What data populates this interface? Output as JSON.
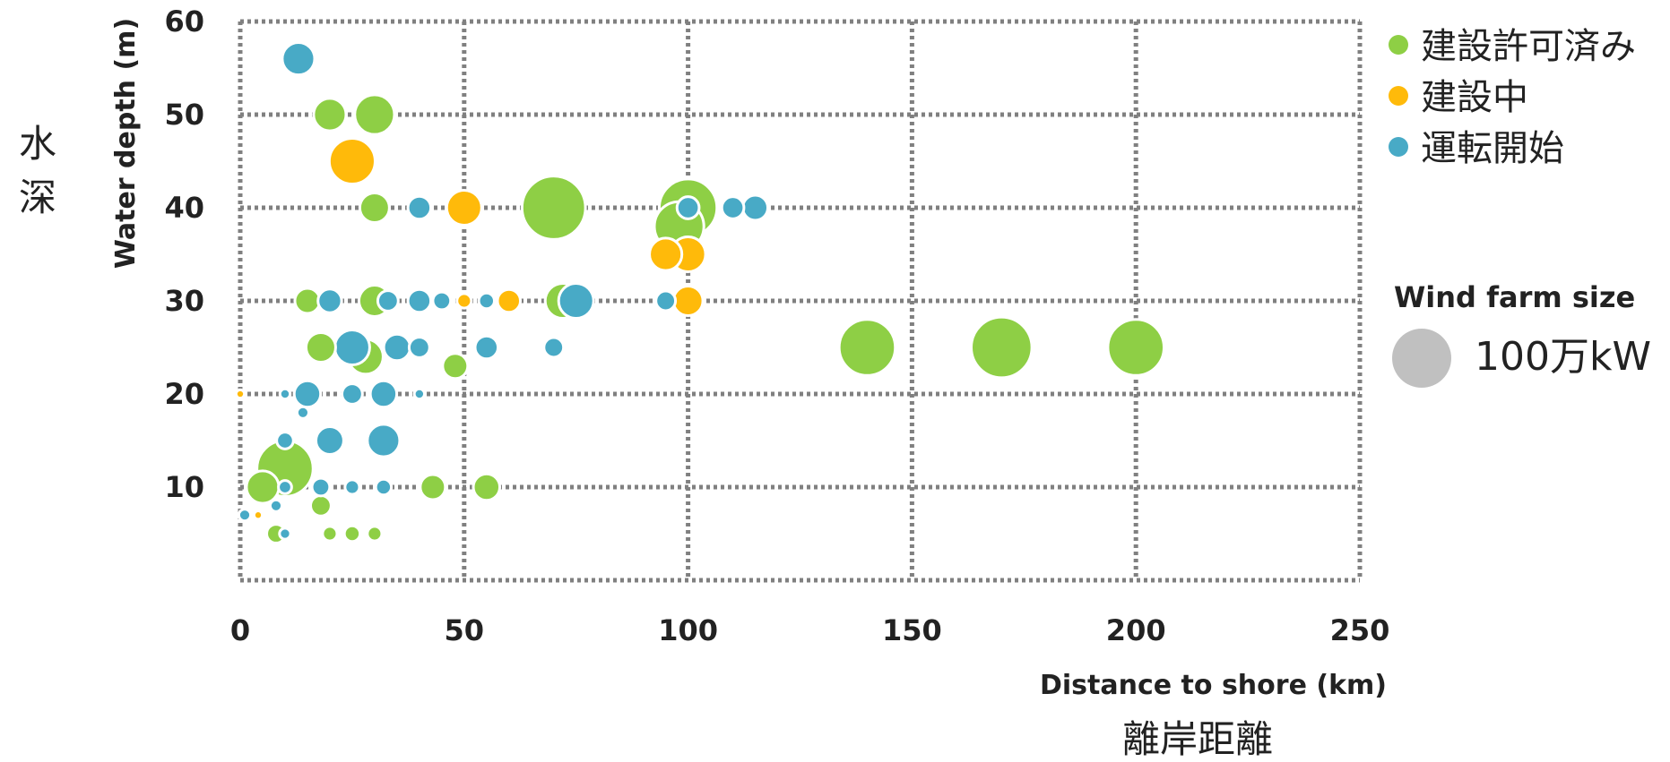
{
  "chart_data": {
    "type": "scatter",
    "subtype": "bubble",
    "xlabel": "Distance to shore  (km)",
    "xlabel_jp": "離岸距離",
    "ylabel": "Water depth (m)",
    "ylabel_jp": "水深",
    "xlim": [
      0,
      250
    ],
    "ylim": [
      0,
      60
    ],
    "x_ticks": [
      0,
      50,
      100,
      150,
      200,
      250
    ],
    "y_ticks": [
      10,
      20,
      30,
      40,
      50,
      60
    ],
    "grid": true,
    "grid_style": "dotted",
    "legend_position": "right",
    "size_legend": {
      "title": "Wind farm size",
      "label": "100万kW",
      "color": "#c0c0c0",
      "size": 1000
    },
    "series": [
      {
        "name": "建設許可済み",
        "color": "#8ecf45",
        "points": [
          {
            "x": 20,
            "y": 50,
            "size": 300
          },
          {
            "x": 30,
            "y": 50,
            "size": 450
          },
          {
            "x": 30,
            "y": 40,
            "size": 250
          },
          {
            "x": 70,
            "y": 40,
            "size": 1150
          },
          {
            "x": 98,
            "y": 38,
            "size": 700
          },
          {
            "x": 100,
            "y": 40,
            "size": 950
          },
          {
            "x": 15,
            "y": 30,
            "size": 180
          },
          {
            "x": 30,
            "y": 30,
            "size": 280
          },
          {
            "x": 72,
            "y": 30,
            "size": 350
          },
          {
            "x": 18,
            "y": 25,
            "size": 250
          },
          {
            "x": 28,
            "y": 24,
            "size": 350
          },
          {
            "x": 48,
            "y": 23,
            "size": 180
          },
          {
            "x": 140,
            "y": 25,
            "size": 900
          },
          {
            "x": 170,
            "y": 25,
            "size": 1050
          },
          {
            "x": 200,
            "y": 25,
            "size": 900
          },
          {
            "x": 10,
            "y": 12,
            "size": 900
          },
          {
            "x": 5,
            "y": 10,
            "size": 300
          },
          {
            "x": 18,
            "y": 8,
            "size": 120
          },
          {
            "x": 8,
            "y": 5,
            "size": 100
          },
          {
            "x": 20,
            "y": 5,
            "size": 60
          },
          {
            "x": 25,
            "y": 5,
            "size": 70
          },
          {
            "x": 30,
            "y": 5,
            "size": 60
          },
          {
            "x": 43,
            "y": 10,
            "size": 180
          },
          {
            "x": 55,
            "y": 10,
            "size": 200
          }
        ]
      },
      {
        "name": "建設中",
        "color": "#ffba0a",
        "points": [
          {
            "x": 25,
            "y": 45,
            "size": 600
          },
          {
            "x": 50,
            "y": 40,
            "size": 350
          },
          {
            "x": 95,
            "y": 35,
            "size": 300
          },
          {
            "x": 100,
            "y": 35,
            "size": 350
          },
          {
            "x": 100,
            "y": 30,
            "size": 250
          },
          {
            "x": 60,
            "y": 30,
            "size": 150
          },
          {
            "x": 50,
            "y": 30,
            "size": 60
          },
          {
            "x": 0,
            "y": 20,
            "size": 20
          },
          {
            "x": 4,
            "y": 7,
            "size": 20
          }
        ]
      },
      {
        "name": "運転開始",
        "color": "#48aac6",
        "points": [
          {
            "x": 13,
            "y": 56,
            "size": 300
          },
          {
            "x": 40,
            "y": 40,
            "size": 150
          },
          {
            "x": 100,
            "y": 40,
            "size": 140
          },
          {
            "x": 110,
            "y": 40,
            "size": 140
          },
          {
            "x": 115,
            "y": 40,
            "size": 180
          },
          {
            "x": 75,
            "y": 30,
            "size": 350
          },
          {
            "x": 95,
            "y": 30,
            "size": 110
          },
          {
            "x": 55,
            "y": 30,
            "size": 70
          },
          {
            "x": 20,
            "y": 30,
            "size": 160
          },
          {
            "x": 33,
            "y": 30,
            "size": 120
          },
          {
            "x": 40,
            "y": 30,
            "size": 150
          },
          {
            "x": 45,
            "y": 30,
            "size": 90
          },
          {
            "x": 25,
            "y": 25,
            "size": 350
          },
          {
            "x": 35,
            "y": 25,
            "size": 200
          },
          {
            "x": 40,
            "y": 25,
            "size": 120
          },
          {
            "x": 55,
            "y": 25,
            "size": 150
          },
          {
            "x": 70,
            "y": 25,
            "size": 110
          },
          {
            "x": 15,
            "y": 20,
            "size": 200
          },
          {
            "x": 32,
            "y": 20,
            "size": 200
          },
          {
            "x": 25,
            "y": 20,
            "size": 120
          },
          {
            "x": 40,
            "y": 20,
            "size": 30
          },
          {
            "x": 20,
            "y": 15,
            "size": 220
          },
          {
            "x": 32,
            "y": 15,
            "size": 300
          },
          {
            "x": 10,
            "y": 15,
            "size": 80
          },
          {
            "x": 18,
            "y": 10,
            "size": 90
          },
          {
            "x": 25,
            "y": 10,
            "size": 60
          },
          {
            "x": 32,
            "y": 10,
            "size": 70
          },
          {
            "x": 10,
            "y": 10,
            "size": 50
          },
          {
            "x": 8,
            "y": 8,
            "size": 40
          },
          {
            "x": 1,
            "y": 7,
            "size": 40
          },
          {
            "x": 10,
            "y": 5,
            "size": 35
          },
          {
            "x": 14,
            "y": 18,
            "size": 40
          },
          {
            "x": 10,
            "y": 20,
            "size": 30
          }
        ]
      }
    ]
  }
}
